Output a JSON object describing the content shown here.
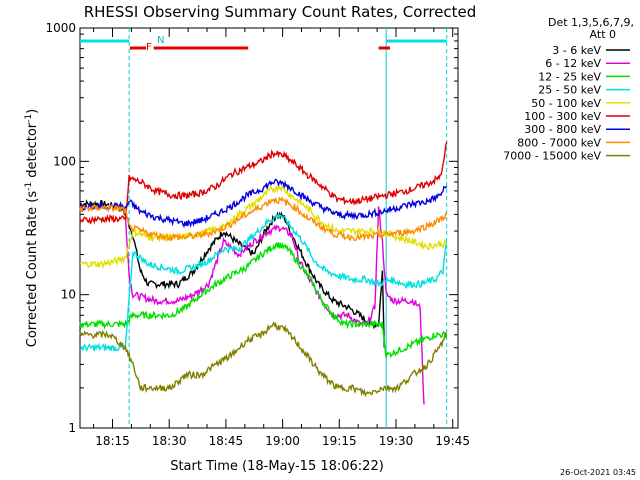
{
  "chart_data": {
    "type": "line",
    "title": "RHESSI Observing Summary Count Rates, Corrected",
    "xlabel": "Start Time (18-May-15 18:06:22)",
    "ylabel_main": "Corrected Count Rate (s",
    "ylabel_exp1": "-1",
    "ylabel_mid": " detector",
    "ylabel_exp2": "-1",
    "ylabel_end": ")",
    "yscale": "log",
    "ylim": [
      1,
      1000
    ],
    "xlim_minutes": [
      0,
      100
    ],
    "x_ticks": [
      {
        "label": "18:15",
        "minutes": 8.6
      },
      {
        "label": "18:30",
        "minutes": 23.6
      },
      {
        "label": "18:45",
        "minutes": 38.6
      },
      {
        "label": "19:00",
        "minutes": 53.6
      },
      {
        "label": "19:15",
        "minutes": 68.6
      },
      {
        "label": "19:30",
        "minutes": 83.6
      },
      {
        "label": "19:45",
        "minutes": 98.6
      }
    ],
    "y_ticks": [
      {
        "label": "1",
        "value": 1
      },
      {
        "label": "10",
        "value": 10
      },
      {
        "label": "100",
        "value": 100
      },
      {
        "label": "1000",
        "value": 1000
      }
    ],
    "legend_header": [
      "Det 1,3,5,6,7,9,",
      "Att 0"
    ],
    "legend_position": "right",
    "series": [
      {
        "name": "3 - 6 keV",
        "color": "#000000",
        "points": [
          [
            0,
            48
          ],
          [
            6,
            48
          ],
          [
            11,
            45
          ],
          [
            12,
            40
          ],
          [
            14,
            28
          ],
          [
            16,
            15
          ],
          [
            18,
            12
          ],
          [
            22,
            12
          ],
          [
            26,
            12
          ],
          [
            30,
            15
          ],
          [
            34,
            22
          ],
          [
            38,
            30
          ],
          [
            42,
            24
          ],
          [
            46,
            20
          ],
          [
            49,
            30
          ],
          [
            52,
            40
          ],
          [
            54,
            38
          ],
          [
            57,
            25
          ],
          [
            60,
            17
          ],
          [
            63,
            12
          ],
          [
            67,
            9
          ],
          [
            71,
            8
          ],
          [
            74,
            7
          ],
          [
            77,
            6
          ],
          [
            79,
            6
          ],
          [
            80,
            15
          ],
          [
            80.5,
            4
          ]
        ]
      },
      {
        "name": "6 - 12 keV",
        "color": "#e000e0",
        "points": [
          [
            12,
            40
          ],
          [
            13,
            14
          ],
          [
            14,
            10
          ],
          [
            20,
            9
          ],
          [
            26,
            9
          ],
          [
            30,
            10
          ],
          [
            34,
            12
          ],
          [
            38,
            25
          ],
          [
            42,
            20
          ],
          [
            46,
            25
          ],
          [
            50,
            30
          ],
          [
            53,
            32
          ],
          [
            56,
            28
          ],
          [
            58,
            18
          ],
          [
            60,
            14
          ],
          [
            63,
            10
          ],
          [
            67,
            7
          ],
          [
            71,
            7
          ],
          [
            74,
            6
          ],
          [
            76,
            6
          ],
          [
            78,
            8
          ],
          [
            79,
            45
          ],
          [
            80,
            25
          ],
          [
            81,
            10
          ],
          [
            83,
            9
          ],
          [
            86,
            9
          ],
          [
            88,
            9
          ],
          [
            90,
            8
          ],
          [
            91,
            1.5
          ]
        ]
      },
      {
        "name": "12 - 25 keV",
        "color": "#00e000",
        "points": [
          [
            0,
            6
          ],
          [
            8,
            6
          ],
          [
            12,
            6
          ],
          [
            14,
            7
          ],
          [
            18,
            7
          ],
          [
            24,
            7
          ],
          [
            28,
            8
          ],
          [
            32,
            10
          ],
          [
            36,
            12
          ],
          [
            40,
            14
          ],
          [
            44,
            16
          ],
          [
            48,
            20
          ],
          [
            52,
            24
          ],
          [
            55,
            22
          ],
          [
            58,
            17
          ],
          [
            61,
            13
          ],
          [
            64,
            9
          ],
          [
            67,
            7
          ],
          [
            70,
            6
          ],
          [
            74,
            6
          ],
          [
            78,
            6
          ],
          [
            80,
            6
          ],
          [
            81,
            3.5
          ],
          [
            86,
            4
          ],
          [
            90,
            4.5
          ],
          [
            94,
            5
          ],
          [
            97,
            5
          ]
        ]
      },
      {
        "name": "25 - 50 keV",
        "color": "#00e0e0",
        "points": [
          [
            0,
            4
          ],
          [
            8,
            4
          ],
          [
            12,
            4
          ],
          [
            14,
            21
          ],
          [
            18,
            17
          ],
          [
            22,
            16
          ],
          [
            26,
            15
          ],
          [
            30,
            16
          ],
          [
            34,
            18
          ],
          [
            38,
            22
          ],
          [
            42,
            22
          ],
          [
            46,
            28
          ],
          [
            50,
            36
          ],
          [
            53,
            40
          ],
          [
            56,
            32
          ],
          [
            59,
            25
          ],
          [
            62,
            18
          ],
          [
            65,
            15
          ],
          [
            68,
            14
          ],
          [
            72,
            13
          ],
          [
            76,
            13
          ],
          [
            79,
            12
          ],
          [
            82,
            13
          ],
          [
            86,
            12
          ],
          [
            90,
            12
          ],
          [
            94,
            13
          ],
          [
            96,
            15
          ],
          [
            97,
            25
          ]
        ]
      },
      {
        "name": "50 - 100 keV",
        "color": "#e0e000",
        "points": [
          [
            0,
            17
          ],
          [
            6,
            17
          ],
          [
            10,
            18
          ],
          [
            12,
            19
          ],
          [
            14,
            30
          ],
          [
            18,
            27
          ],
          [
            22,
            27
          ],
          [
            26,
            27
          ],
          [
            30,
            28
          ],
          [
            34,
            30
          ],
          [
            38,
            32
          ],
          [
            42,
            40
          ],
          [
            46,
            48
          ],
          [
            50,
            60
          ],
          [
            53,
            65
          ],
          [
            56,
            55
          ],
          [
            60,
            45
          ],
          [
            64,
            35
          ],
          [
            68,
            30
          ],
          [
            72,
            30
          ],
          [
            76,
            30
          ],
          [
            80,
            30
          ],
          [
            84,
            27
          ],
          [
            88,
            25
          ],
          [
            92,
            23
          ],
          [
            95,
            24
          ],
          [
            97,
            24
          ]
        ]
      },
      {
        "name": "100 - 300 keV",
        "color": "#e00000",
        "points": [
          [
            0,
            36
          ],
          [
            6,
            37
          ],
          [
            11,
            37
          ],
          [
            12,
            36
          ],
          [
            13,
            75
          ],
          [
            16,
            70
          ],
          [
            20,
            60
          ],
          [
            24,
            56
          ],
          [
            28,
            55
          ],
          [
            32,
            58
          ],
          [
            36,
            65
          ],
          [
            40,
            80
          ],
          [
            44,
            90
          ],
          [
            48,
            100
          ],
          [
            51,
            115
          ],
          [
            54,
            110
          ],
          [
            57,
            95
          ],
          [
            60,
            80
          ],
          [
            64,
            65
          ],
          [
            68,
            52
          ],
          [
            72,
            50
          ],
          [
            76,
            52
          ],
          [
            80,
            55
          ],
          [
            84,
            58
          ],
          [
            88,
            62
          ],
          [
            92,
            68
          ],
          [
            95,
            75
          ],
          [
            96,
            90
          ],
          [
            97,
            140
          ]
        ]
      },
      {
        "name": "300 - 800 keV",
        "color": "#0000e0",
        "points": [
          [
            0,
            45
          ],
          [
            6,
            46
          ],
          [
            11,
            46
          ],
          [
            12,
            44
          ],
          [
            13,
            50
          ],
          [
            16,
            42
          ],
          [
            20,
            38
          ],
          [
            24,
            36
          ],
          [
            28,
            34
          ],
          [
            32,
            36
          ],
          [
            36,
            40
          ],
          [
            40,
            46
          ],
          [
            44,
            55
          ],
          [
            48,
            62
          ],
          [
            51,
            70
          ],
          [
            54,
            68
          ],
          [
            57,
            60
          ],
          [
            60,
            52
          ],
          [
            64,
            45
          ],
          [
            68,
            40
          ],
          [
            72,
            39
          ],
          [
            76,
            40
          ],
          [
            80,
            42
          ],
          [
            84,
            45
          ],
          [
            88,
            48
          ],
          [
            92,
            50
          ],
          [
            95,
            55
          ],
          [
            97,
            65
          ]
        ]
      },
      {
        "name": "800 - 7000 keV",
        "color": "#ff8c00",
        "points": [
          [
            0,
            44
          ],
          [
            6,
            45
          ],
          [
            11,
            44
          ],
          [
            12,
            42
          ],
          [
            13,
            32
          ],
          [
            16,
            30
          ],
          [
            20,
            28
          ],
          [
            24,
            27
          ],
          [
            28,
            27
          ],
          [
            32,
            28
          ],
          [
            36,
            30
          ],
          [
            40,
            34
          ],
          [
            44,
            40
          ],
          [
            48,
            46
          ],
          [
            51,
            52
          ],
          [
            54,
            50
          ],
          [
            57,
            45
          ],
          [
            60,
            38
          ],
          [
            64,
            32
          ],
          [
            68,
            28
          ],
          [
            72,
            27
          ],
          [
            76,
            27
          ],
          [
            80,
            28
          ],
          [
            84,
            29
          ],
          [
            88,
            30
          ],
          [
            92,
            33
          ],
          [
            95,
            36
          ],
          [
            97,
            40
          ]
        ]
      },
      {
        "name": "7000 - 15000 keV",
        "color": "#808000",
        "points": [
          [
            0,
            5
          ],
          [
            8,
            5
          ],
          [
            12,
            4
          ],
          [
            14,
            3
          ],
          [
            16,
            2
          ],
          [
            20,
            2
          ],
          [
            24,
            2
          ],
          [
            28,
            2.5
          ],
          [
            32,
            2.5
          ],
          [
            36,
            3
          ],
          [
            40,
            3.5
          ],
          [
            44,
            4.5
          ],
          [
            48,
            5
          ],
          [
            51,
            6
          ],
          [
            54,
            5.5
          ],
          [
            57,
            4.5
          ],
          [
            60,
            3.5
          ],
          [
            64,
            2.5
          ],
          [
            68,
            2
          ],
          [
            72,
            2
          ],
          [
            76,
            1.8
          ],
          [
            80,
            2
          ],
          [
            84,
            2
          ],
          [
            88,
            2.5
          ],
          [
            92,
            3
          ],
          [
            95,
            4
          ],
          [
            97,
            5
          ]
        ]
      }
    ],
    "annotations": [
      {
        "label": "F",
        "color": "#e00000"
      },
      {
        "label": "N",
        "color": "#00e0e0"
      }
    ],
    "flare_bars_minutes": [
      [
        13.2,
        17.5
      ],
      [
        19.5,
        44.5
      ],
      [
        79,
        82
      ]
    ],
    "night_bars_minutes": [
      [
        0,
        13
      ],
      [
        81,
        97
      ]
    ],
    "vertical_markers_minutes": [
      13,
      81,
      97
    ],
    "footer_timestamp": "26-Oct-2021 03:45"
  }
}
